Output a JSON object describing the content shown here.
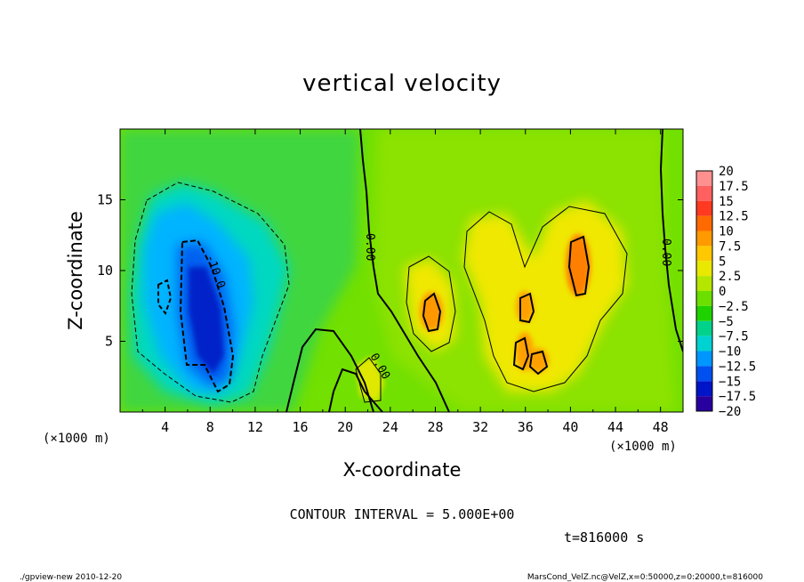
{
  "chart_data": {
    "type": "heatmap",
    "title": "vertical velocity",
    "xlabel": "X-coordinate",
    "ylabel": "Z-coordinate",
    "x_unit": "(×1000 m)",
    "y_unit": "(×1000 m)",
    "xlim": [
      0,
      50
    ],
    "ylim": [
      0,
      20
    ],
    "x_ticks": [
      4,
      8,
      12,
      16,
      20,
      24,
      28,
      32,
      36,
      40,
      44,
      48
    ],
    "y_ticks": [
      5,
      10,
      15
    ],
    "colorbar": {
      "labels": [
        "20",
        "17.5",
        "15",
        "12.5",
        "10",
        "7.5",
        "5",
        "2.5",
        "0",
        "-2.5",
        "-5",
        "-7.5",
        "-10",
        "-12.5",
        "-15",
        "-17.5",
        "-20"
      ],
      "colors": [
        "#ff9090",
        "#ff6060",
        "#ff3a20",
        "#ff6a00",
        "#ff9a00",
        "#ffc800",
        "#e8e800",
        "#b4e600",
        "#6be000",
        "#1ed200",
        "#00d28c",
        "#00d2d2",
        "#0096ff",
        "#0050f0",
        "#0014c8",
        "#2800a0",
        "#6e00c8"
      ]
    },
    "contour_labels": [
      "0.00",
      "0.00",
      "0.00",
      "-10.0"
    ],
    "features": [
      {
        "kind": "updraft",
        "x": 27.7,
        "z": 7.4,
        "peak": 10
      },
      {
        "kind": "updraft",
        "x": 40.6,
        "z": 10.5,
        "peak": 12.5
      },
      {
        "kind": "updraft",
        "x": 35.7,
        "z": 7.2,
        "peak": 9
      },
      {
        "kind": "updraft",
        "x": 37.5,
        "z": 3.5,
        "peak": 9
      },
      {
        "kind": "updraft",
        "x": 35.2,
        "z": 4.2,
        "peak": 8.5
      },
      {
        "kind": "updraft",
        "x": 22.0,
        "z": 2.2,
        "peak": 6
      },
      {
        "kind": "downdraft",
        "x": 7.8,
        "z": 7.0,
        "peak": -15
      },
      {
        "kind": "downdraft",
        "x": 3.8,
        "z": 8.5,
        "peak": -10
      }
    ]
  },
  "info": {
    "contour_interval": "CONTOUR INTERVAL = 5.000E+00",
    "time": "t=816000 s",
    "footer_left": "./gpview-new  2010-12-20",
    "footer_right": "MarsCond_VelZ.nc@VelZ,x=0:50000,z=0:20000,t=816000"
  }
}
